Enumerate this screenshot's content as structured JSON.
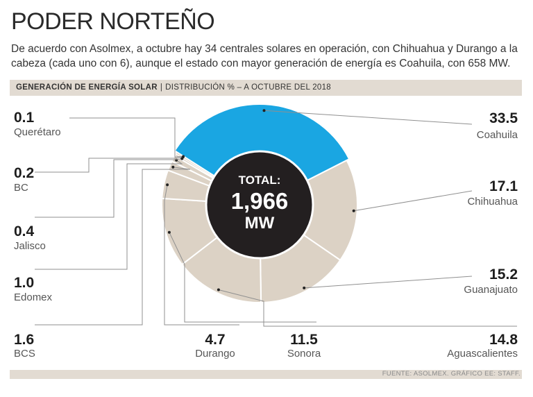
{
  "header": {
    "title": "PODER NORTEÑO",
    "subtitle": "De acuerdo con Asolmex, a octubre hay 34 centrales solares en operación, con Chihuahua y Durango a la cabeza (cada uno con 6), aunque el estado con mayor generación de energía es Coahuila, con 658 MW."
  },
  "band": {
    "bold": "GENERACIÓN DE ENERGÍA SOLAR",
    "separator": "|",
    "rest": "DISTRIBUCIÓN % – A OCTUBRE DEL 2018"
  },
  "center": {
    "line1": "TOTAL:",
    "line2": "1,966",
    "line3": "MW"
  },
  "source": "FUENTE: ASOLMEX. GRÁFICO EE: STAFF.",
  "colors": {
    "highlight": "#1aa6e2",
    "slice": "#dcd2c5",
    "center": "#231f20",
    "separator": "#ffffff",
    "leader": "#8f8f8f"
  },
  "chart_data": {
    "type": "pie",
    "total_label": "TOTAL: 1,966 MW",
    "unit": "%",
    "slices": [
      {
        "label": "Coahuila",
        "value": 33.5,
        "value_text": "33.5",
        "highlight": true
      },
      {
        "label": "Chihuahua",
        "value": 17.1,
        "value_text": "17.1",
        "highlight": false
      },
      {
        "label": "Guanajuato",
        "value": 15.2,
        "value_text": "15.2",
        "highlight": false
      },
      {
        "label": "Aguascalientes",
        "value": 14.8,
        "value_text": "14.8",
        "highlight": false
      },
      {
        "label": "Sonora",
        "value": 11.5,
        "value_text": "11.5",
        "highlight": false
      },
      {
        "label": "Durango",
        "value": 4.7,
        "value_text": "4.7",
        "highlight": false
      },
      {
        "label": "BCS",
        "value": 1.6,
        "value_text": "1.6",
        "highlight": false
      },
      {
        "label": "Edomex",
        "value": 1.0,
        "value_text": "1.0",
        "highlight": false
      },
      {
        "label": "Jalisco",
        "value": 0.4,
        "value_text": "0.4",
        "highlight": false
      },
      {
        "label": "BC",
        "value": 0.2,
        "value_text": "0.2",
        "highlight": false
      },
      {
        "label": "Querétaro",
        "value": 0.1,
        "value_text": "0.1",
        "highlight": false
      }
    ]
  }
}
